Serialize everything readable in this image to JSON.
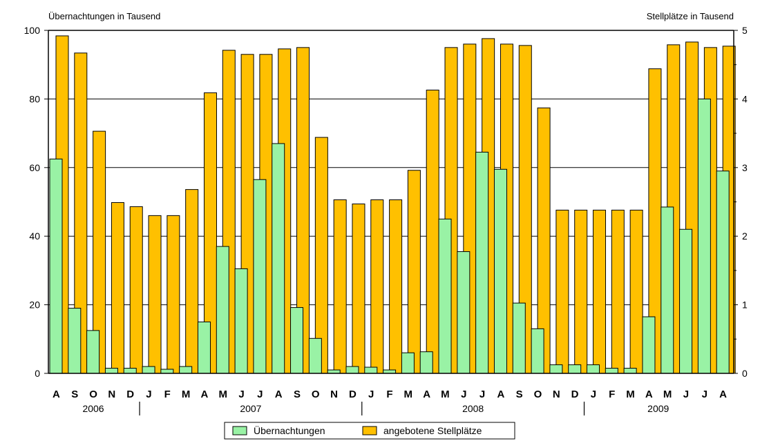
{
  "chart_data": {
    "type": "bar",
    "y_left_title": "Übernachtungen in Tausend",
    "y_right_title": "Stellplätze in Tausend",
    "y_left_range": [
      0,
      100
    ],
    "y_left_ticks": [
      "0",
      "20",
      "40",
      "60",
      "80",
      "100"
    ],
    "y_right_range": [
      0,
      5
    ],
    "y_right_ticks": [
      "0",
      "1",
      "2",
      "3",
      "4",
      "5"
    ],
    "grid": true,
    "legend_position": "bottom-center",
    "categories": [
      "A",
      "S",
      "O",
      "N",
      "D",
      "J",
      "F",
      "M",
      "A",
      "M",
      "J",
      "J",
      "A",
      "S",
      "O",
      "N",
      "D",
      "J",
      "F",
      "M",
      "A",
      "M",
      "J",
      "J",
      "A",
      "S",
      "O",
      "N",
      "D",
      "J",
      "F",
      "M",
      "A",
      "M",
      "J",
      "J",
      "A"
    ],
    "years": [
      {
        "label": "2006",
        "first": 0,
        "last": 4
      },
      {
        "label": "2007",
        "first": 5,
        "last": 16
      },
      {
        "label": "2008",
        "first": 17,
        "last": 28
      },
      {
        "label": "2009",
        "first": 29,
        "last": 36
      }
    ],
    "series": [
      {
        "name": "Übernachtungen",
        "axis": "left",
        "color": "#99f2a5",
        "values": [
          62.5,
          19,
          12.5,
          1.5,
          1.5,
          2,
          1.2,
          2,
          15,
          37,
          30.5,
          56.5,
          67,
          19.2,
          10.2,
          1,
          2,
          1.8,
          1,
          6,
          6.3,
          45,
          35.5,
          64.5,
          59.5,
          20.5,
          13,
          2.5,
          2.5,
          2.5,
          1.5,
          1.5,
          16.5,
          48.5,
          42,
          80,
          59
        ]
      },
      {
        "name": "angebotene Stellplätze",
        "axis": "right",
        "color": "#ffc000",
        "values": [
          4.92,
          4.67,
          3.53,
          2.49,
          2.43,
          2.3,
          2.3,
          2.68,
          4.09,
          4.71,
          4.65,
          4.65,
          4.73,
          4.75,
          3.44,
          2.53,
          2.47,
          2.53,
          2.53,
          2.96,
          4.13,
          4.75,
          4.8,
          4.88,
          4.8,
          4.78,
          3.87,
          2.38,
          2.38,
          2.38,
          2.38,
          2.38,
          4.44,
          4.79,
          4.83,
          4.75,
          4.77
        ]
      }
    ]
  }
}
